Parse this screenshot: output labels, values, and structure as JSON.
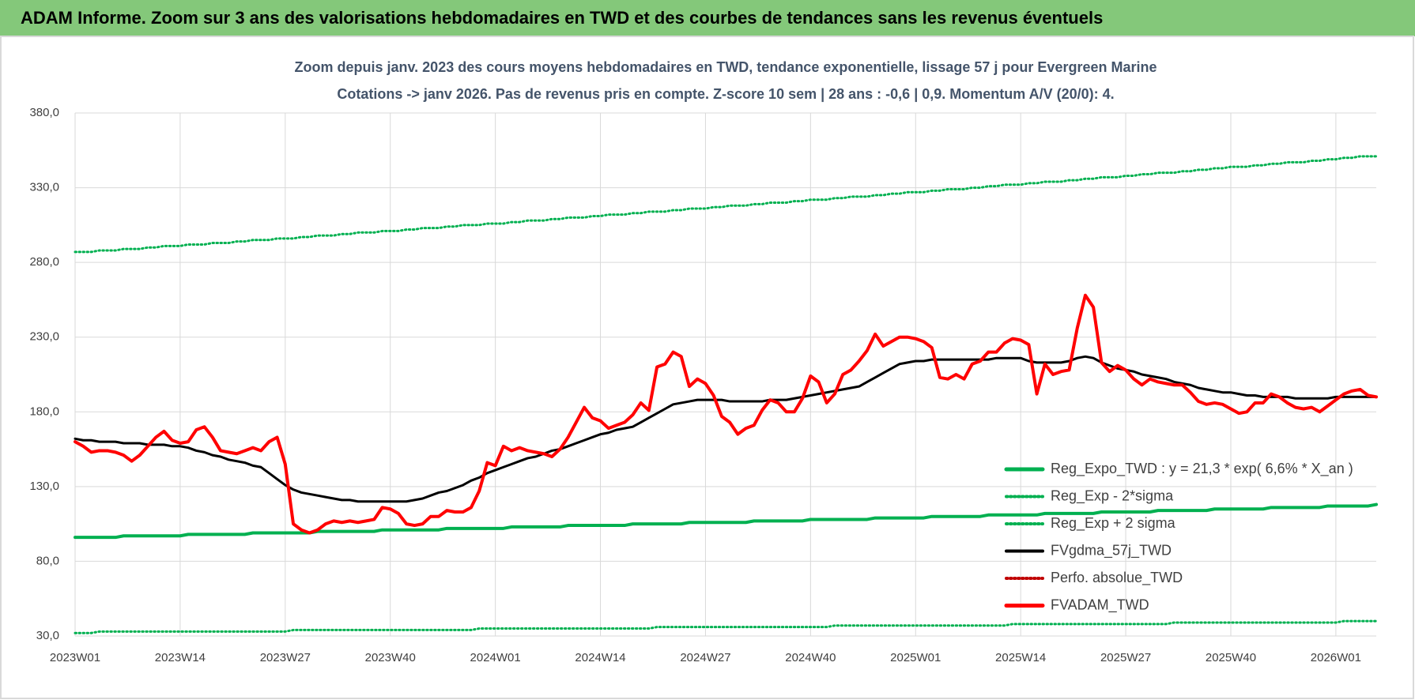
{
  "header": {
    "title": "ADAM Informe. Zoom sur 3 ans des valorisations hebdomadaires en TWD et des courbes de tendances sans les revenus éventuels"
  },
  "chart_data": {
    "type": "line",
    "title": [
      "Zoom depuis janv. 2023 des cours moyens hebdomadaires en TWD, tendance exponentielle, lissage 57 j pour Evergreen Marine",
      "Cotations -> janv 2026. Pas de revenus pris en compte. Z-score 10 sem | 28 ans : -0,6 | 0,9. Momentum A/V (20/0): 4."
    ],
    "categories": [
      "2023W01",
      null,
      null,
      null,
      null,
      null,
      null,
      null,
      null,
      null,
      null,
      null,
      null,
      "2023W14",
      null,
      null,
      null,
      null,
      null,
      null,
      null,
      null,
      null,
      null,
      null,
      null,
      "2023W27",
      null,
      null,
      null,
      null,
      null,
      null,
      null,
      null,
      null,
      null,
      null,
      null,
      "2023W40",
      null,
      null,
      null,
      null,
      null,
      null,
      null,
      null,
      null,
      null,
      null,
      null,
      "2024W01",
      null,
      null,
      null,
      null,
      null,
      null,
      null,
      null,
      null,
      null,
      null,
      null,
      "2024W14",
      null,
      null,
      null,
      null,
      null,
      null,
      null,
      null,
      null,
      null,
      null,
      null,
      "2024W27",
      null,
      null,
      null,
      null,
      null,
      null,
      null,
      null,
      null,
      null,
      null,
      null,
      "2024W40",
      null,
      null,
      null,
      null,
      null,
      null,
      null,
      null,
      null,
      null,
      null,
      null,
      "2025W01",
      null,
      null,
      null,
      null,
      null,
      null,
      null,
      null,
      null,
      null,
      null,
      null,
      "2025W14",
      null,
      null,
      null,
      null,
      null,
      null,
      null,
      null,
      null,
      null,
      null,
      null,
      "2025W27",
      null,
      null,
      null,
      null,
      null,
      null,
      null,
      null,
      null,
      null,
      null,
      null,
      "2025W40",
      null,
      null,
      null,
      null,
      null,
      null,
      null,
      null,
      null,
      null,
      null,
      null,
      "2026W01",
      null,
      null,
      null,
      null,
      null
    ],
    "ylim": [
      30,
      380
    ],
    "yticks": [
      {
        "value": 30,
        "label": "30,0"
      },
      {
        "value": 80,
        "label": "80,0"
      },
      {
        "value": 130,
        "label": "130,0"
      },
      {
        "value": 180,
        "label": "180,0"
      },
      {
        "value": 230,
        "label": "230,0"
      },
      {
        "value": 280,
        "label": "280,0"
      },
      {
        "value": 330,
        "label": "330,0"
      },
      {
        "value": 380,
        "label": "380,0"
      }
    ],
    "grid": true,
    "legend": "lower right",
    "series": [
      {
        "name": "Reg_Expo_TWD : y = 21,3 * exp( 6,6% *  X_an )",
        "color": "#00b050",
        "line_style": "bold",
        "values": [
          96,
          96,
          96,
          96,
          96,
          96,
          97,
          97,
          97,
          97,
          97,
          97,
          97,
          97,
          98,
          98,
          98,
          98,
          98,
          98,
          98,
          98,
          99,
          99,
          99,
          99,
          99,
          99,
          99,
          99,
          100,
          100,
          100,
          100,
          100,
          100,
          100,
          100,
          101,
          101,
          101,
          101,
          101,
          101,
          101,
          101,
          102,
          102,
          102,
          102,
          102,
          102,
          102,
          102,
          103,
          103,
          103,
          103,
          103,
          103,
          103,
          104,
          104,
          104,
          104,
          104,
          104,
          104,
          104,
          105,
          105,
          105,
          105,
          105,
          105,
          105,
          106,
          106,
          106,
          106,
          106,
          106,
          106,
          106,
          107,
          107,
          107,
          107,
          107,
          107,
          107,
          108,
          108,
          108,
          108,
          108,
          108,
          108,
          108,
          109,
          109,
          109,
          109,
          109,
          109,
          109,
          110,
          110,
          110,
          110,
          110,
          110,
          110,
          111,
          111,
          111,
          111,
          111,
          111,
          111,
          112,
          112,
          112,
          112,
          112,
          112,
          112,
          113,
          113,
          113,
          113,
          113,
          113,
          113,
          114,
          114,
          114,
          114,
          114,
          114,
          114,
          115,
          115,
          115,
          115,
          115,
          115,
          115,
          116,
          116,
          116,
          116,
          116,
          116,
          116,
          117,
          117,
          117,
          117,
          117,
          117,
          118
        ]
      },
      {
        "name": "Reg_Exp - 2*sigma",
        "color": "#00b050",
        "line_style": "dotted",
        "values": [
          32,
          32,
          32,
          33,
          33,
          33,
          33,
          33,
          33,
          33,
          33,
          33,
          33,
          33,
          33,
          33,
          33,
          33,
          33,
          33,
          33,
          33,
          33,
          33,
          33,
          33,
          33,
          34,
          34,
          34,
          34,
          34,
          34,
          34,
          34,
          34,
          34,
          34,
          34,
          34,
          34,
          34,
          34,
          34,
          34,
          34,
          34,
          34,
          34,
          34,
          35,
          35,
          35,
          35,
          35,
          35,
          35,
          35,
          35,
          35,
          35,
          35,
          35,
          35,
          35,
          35,
          35,
          35,
          35,
          35,
          35,
          35,
          36,
          36,
          36,
          36,
          36,
          36,
          36,
          36,
          36,
          36,
          36,
          36,
          36,
          36,
          36,
          36,
          36,
          36,
          36,
          36,
          36,
          36,
          37,
          37,
          37,
          37,
          37,
          37,
          37,
          37,
          37,
          37,
          37,
          37,
          37,
          37,
          37,
          37,
          37,
          37,
          37,
          37,
          37,
          37,
          38,
          38,
          38,
          38,
          38,
          38,
          38,
          38,
          38,
          38,
          38,
          38,
          38,
          38,
          38,
          38,
          38,
          38,
          38,
          38,
          39,
          39,
          39,
          39,
          39,
          39,
          39,
          39,
          39,
          39,
          39,
          39,
          39,
          39,
          39,
          39,
          39,
          39,
          39,
          39,
          39,
          40,
          40,
          40,
          40,
          40
        ]
      },
      {
        "name": "Reg_Exp + 2 sigma",
        "color": "#00b050",
        "line_style": "dotted",
        "values": [
          287,
          287,
          287,
          288,
          288,
          288,
          289,
          289,
          289,
          290,
          290,
          291,
          291,
          291,
          292,
          292,
          292,
          293,
          293,
          293,
          294,
          294,
          295,
          295,
          295,
          296,
          296,
          296,
          297,
          297,
          298,
          298,
          298,
          299,
          299,
          300,
          300,
          300,
          301,
          301,
          301,
          302,
          302,
          303,
          303,
          303,
          304,
          304,
          305,
          305,
          305,
          306,
          306,
          306,
          307,
          307,
          308,
          308,
          308,
          309,
          309,
          310,
          310,
          310,
          311,
          311,
          312,
          312,
          312,
          313,
          313,
          314,
          314,
          314,
          315,
          315,
          316,
          316,
          316,
          317,
          317,
          318,
          318,
          318,
          319,
          319,
          320,
          320,
          320,
          321,
          321,
          322,
          322,
          322,
          323,
          323,
          324,
          324,
          324,
          325,
          325,
          326,
          326,
          327,
          327,
          327,
          328,
          328,
          329,
          329,
          329,
          330,
          330,
          331,
          331,
          332,
          332,
          332,
          333,
          333,
          334,
          334,
          334,
          335,
          335,
          336,
          336,
          337,
          337,
          337,
          338,
          338,
          339,
          339,
          340,
          340,
          340,
          341,
          341,
          342,
          342,
          343,
          343,
          344,
          344,
          344,
          345,
          345,
          346,
          346,
          347,
          347,
          347,
          348,
          348,
          349,
          349,
          350,
          350,
          351,
          351,
          351
        ]
      },
      {
        "name": "FVgdma_57j_TWD",
        "color": "#000000",
        "line_style": "solid",
        "values": [
          162,
          161,
          161,
          160,
          160,
          160,
          159,
          159,
          159,
          158,
          158,
          158,
          157,
          157,
          156,
          154,
          153,
          151,
          150,
          148,
          147,
          146,
          144,
          143,
          139,
          135,
          131,
          128,
          126,
          125,
          124,
          123,
          122,
          121,
          121,
          120,
          120,
          120,
          120,
          120,
          120,
          120,
          121,
          122,
          124,
          126,
          127,
          129,
          131,
          134,
          136,
          139,
          141,
          143,
          145,
          147,
          149,
          150,
          152,
          154,
          155,
          157,
          159,
          161,
          163,
          165,
          166,
          168,
          169,
          170,
          173,
          176,
          179,
          182,
          185,
          186,
          187,
          188,
          188,
          188,
          188,
          187,
          187,
          187,
          187,
          187,
          188,
          188,
          188,
          189,
          190,
          191,
          192,
          193,
          194,
          195,
          196,
          197,
          200,
          203,
          206,
          209,
          212,
          213,
          214,
          214,
          215,
          215,
          215,
          215,
          215,
          215,
          215,
          215,
          216,
          216,
          216,
          216,
          214,
          213,
          213,
          213,
          213,
          214,
          216,
          217,
          216,
          213,
          211,
          209,
          208,
          207,
          205,
          204,
          203,
          202,
          200,
          199,
          198,
          196,
          195,
          194,
          193,
          193,
          192,
          191,
          191,
          190,
          190,
          190,
          190,
          189,
          189,
          189,
          189,
          189,
          190,
          190,
          190,
          190,
          190,
          190
        ]
      },
      {
        "name": "Perfo. absolue_TWD",
        "color": "#c00000",
        "line_style": "dotted",
        "values": [
          null,
          null,
          null,
          null,
          null,
          null,
          null,
          null,
          null,
          null,
          null,
          null,
          null,
          null,
          null,
          null,
          null,
          null,
          null,
          null,
          null,
          null,
          null,
          null,
          null,
          null,
          null,
          null,
          null,
          null,
          null,
          null,
          null,
          null,
          null,
          null,
          null,
          null,
          null,
          null,
          null,
          null,
          null,
          null,
          null,
          null,
          null,
          null,
          null,
          null,
          null,
          null,
          null,
          null,
          null,
          null,
          null,
          null,
          null,
          null,
          null,
          null,
          null,
          null,
          null,
          null,
          null,
          null,
          null,
          null,
          null,
          null,
          null,
          null,
          null,
          null,
          null,
          null,
          null,
          null,
          null,
          null,
          null,
          null,
          null,
          null,
          null,
          null,
          null,
          null,
          null,
          null,
          null,
          null,
          null,
          null,
          null,
          null,
          null,
          null,
          null,
          null,
          null,
          null,
          null,
          null,
          null,
          null,
          null,
          null,
          null,
          null,
          null,
          null,
          null,
          null,
          null,
          null,
          null,
          null,
          null,
          null,
          null,
          null,
          null,
          null,
          null,
          null,
          null,
          null,
          null,
          null,
          null,
          null,
          null,
          null,
          null,
          null,
          null,
          null,
          null,
          null,
          null,
          null,
          null,
          null,
          null,
          null,
          null,
          null,
          null,
          null,
          null,
          null,
          null,
          null,
          null,
          null,
          null,
          null,
          null,
          null
        ]
      },
      {
        "name": "FVADAM_TWD",
        "color": "#ff0000",
        "line_style": "bold",
        "values": [
          160,
          157,
          153,
          154,
          154,
          153,
          151,
          147,
          151,
          157,
          163,
          167,
          161,
          159,
          160,
          168,
          170,
          163,
          154,
          153,
          152,
          154,
          156,
          154,
          160,
          163,
          145,
          105,
          101,
          99,
          101,
          105,
          107,
          106,
          107,
          106,
          107,
          108,
          116,
          115,
          112,
          105,
          104,
          105,
          110,
          110,
          114,
          113,
          113,
          116,
          127,
          146,
          144,
          157,
          154,
          156,
          154,
          153,
          152,
          150,
          155,
          163,
          173,
          183,
          176,
          174,
          169,
          171,
          173,
          178,
          186,
          181,
          210,
          212,
          220,
          217,
          197,
          202,
          199,
          191,
          177,
          173,
          165,
          169,
          171,
          181,
          188,
          186,
          180,
          180,
          189,
          204,
          200,
          186,
          192,
          205,
          208,
          214,
          221,
          232,
          224,
          227,
          230,
          230,
          229,
          227,
          223,
          203,
          202,
          205,
          202,
          212,
          214,
          220,
          220,
          226,
          229,
          228,
          225,
          192,
          212,
          205,
          207,
          208,
          236,
          258,
          250,
          213,
          207,
          211,
          208,
          202,
          198,
          202,
          200,
          199,
          198,
          198,
          193,
          187,
          185,
          186,
          185,
          182,
          179,
          180,
          186,
          186,
          192,
          190,
          186,
          183,
          182,
          183,
          180,
          184,
          188,
          192,
          194,
          195,
          191,
          190
        ]
      }
    ]
  }
}
